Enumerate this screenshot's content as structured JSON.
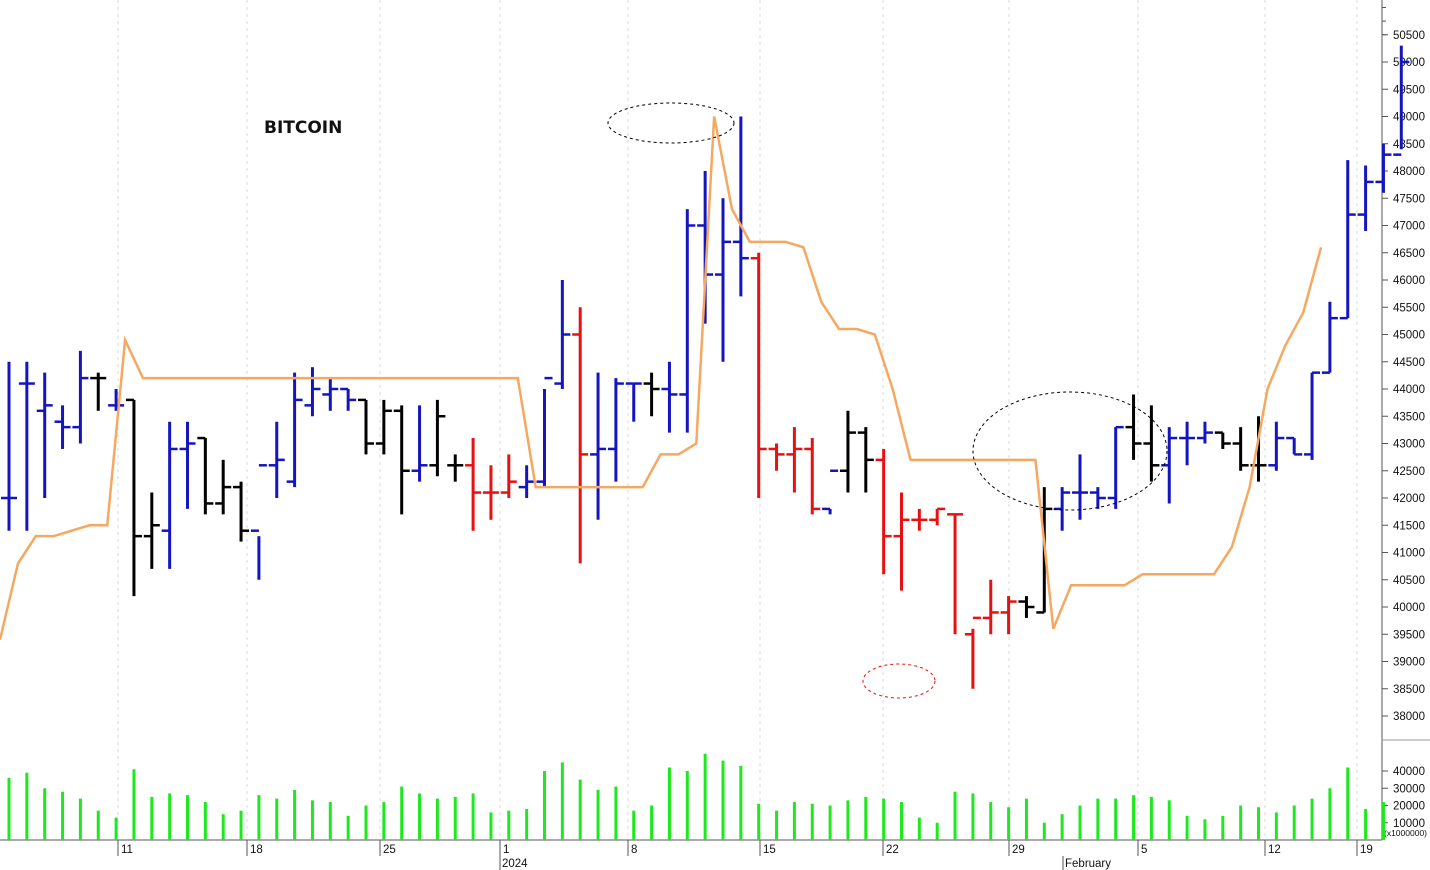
{
  "chart_data": {
    "type": "ohlc",
    "title": "BITCOIN",
    "price_axis": {
      "ylim": [
        37000,
        51000
      ],
      "ticks": [
        "38000",
        "38500",
        "39000",
        "39500",
        "40000",
        "40500",
        "41000",
        "41500",
        "42000",
        "42500",
        "43000",
        "43500",
        "44000",
        "44500",
        "45000",
        "45500",
        "46000",
        "46500",
        "47000",
        "47500",
        "48000",
        "48500",
        "49000",
        "49500",
        "50000",
        "50500"
      ]
    },
    "volume_axis": {
      "ylim": [
        0,
        50000
      ],
      "ticks": [
        "10000",
        "20000",
        "30000",
        "40000"
      ],
      "unit_label": "(x1000000)"
    },
    "x_ticks": [
      "11",
      "18",
      "25",
      "1",
      "8",
      "15",
      "22",
      "29",
      "5",
      "12",
      "19"
    ],
    "x_sublabels": [
      "2024",
      "February"
    ],
    "colors": {
      "up": "#1515c0",
      "neutral": "#000000",
      "down": "#e81010",
      "stop_line": "#f6a860",
      "volume": "#1ee81e",
      "annotation_dark": "#000000",
      "annotation_red": "#e81010"
    },
    "bars": [
      {
        "o": 42000,
        "h": 44500,
        "l": 41400,
        "c": 42000,
        "color": "up",
        "vol": 36000
      },
      {
        "o": 44100,
        "h": 44500,
        "l": 41400,
        "c": 44100,
        "color": "up",
        "vol": 39000
      },
      {
        "o": 43600,
        "h": 44300,
        "l": 42000,
        "c": 43700,
        "color": "up",
        "vol": 30000
      },
      {
        "o": 43400,
        "h": 43700,
        "l": 42900,
        "c": 43300,
        "color": "up",
        "vol": 28000
      },
      {
        "o": 43300,
        "h": 44700,
        "l": 43000,
        "c": 44200,
        "color": "up",
        "vol": 24000
      },
      {
        "o": 44200,
        "h": 44300,
        "l": 43600,
        "c": 44200,
        "color": "neutral",
        "vol": 17000
      },
      {
        "o": 43700,
        "h": 44000,
        "l": 43600,
        "c": 43700,
        "color": "up",
        "vol": 13000
      },
      {
        "o": 43800,
        "h": 43800,
        "l": 40200,
        "c": 41300,
        "color": "neutral",
        "vol": 41000
      },
      {
        "o": 41300,
        "h": 42100,
        "l": 40700,
        "c": 41500,
        "color": "neutral",
        "vol": 25000
      },
      {
        "o": 41400,
        "h": 43400,
        "l": 40700,
        "c": 42900,
        "color": "up",
        "vol": 27000
      },
      {
        "o": 42900,
        "h": 43400,
        "l": 41800,
        "c": 43000,
        "color": "up",
        "vol": 26000
      },
      {
        "o": 43100,
        "h": 43100,
        "l": 41700,
        "c": 41900,
        "color": "neutral",
        "vol": 22000
      },
      {
        "o": 41900,
        "h": 42700,
        "l": 41700,
        "c": 42200,
        "color": "neutral",
        "vol": 15000
      },
      {
        "o": 42200,
        "h": 42300,
        "l": 41200,
        "c": 41400,
        "color": "neutral",
        "vol": 17000
      },
      {
        "o": 41400,
        "h": 41300,
        "l": 40500,
        "c": 42600,
        "color": "up",
        "vol": 26000
      },
      {
        "o": 42600,
        "h": 43400,
        "l": 42000,
        "c": 42700,
        "color": "up",
        "vol": 24000
      },
      {
        "o": 42300,
        "h": 44300,
        "l": 42200,
        "c": 43800,
        "color": "up",
        "vol": 29000
      },
      {
        "o": 43700,
        "h": 44400,
        "l": 43500,
        "c": 44000,
        "color": "up",
        "vol": 23000
      },
      {
        "o": 43900,
        "h": 44200,
        "l": 43600,
        "c": 44000,
        "color": "up",
        "vol": 22000
      },
      {
        "o": 44000,
        "h": 44000,
        "l": 43600,
        "c": 43800,
        "color": "up",
        "vol": 14000
      },
      {
        "o": 43800,
        "h": 43800,
        "l": 42800,
        "c": 43000,
        "color": "neutral",
        "vol": 20000
      },
      {
        "o": 43000,
        "h": 43800,
        "l": 42800,
        "c": 43600,
        "color": "neutral",
        "vol": 22000
      },
      {
        "o": 43600,
        "h": 43700,
        "l": 41700,
        "c": 42500,
        "color": "neutral",
        "vol": 31000
      },
      {
        "o": 42500,
        "h": 43700,
        "l": 42300,
        "c": 42600,
        "color": "up",
        "vol": 27000
      },
      {
        "o": 42600,
        "h": 43800,
        "l": 42400,
        "c": 43500,
        "color": "neutral",
        "vol": 24000
      },
      {
        "o": 42600,
        "h": 42800,
        "l": 42300,
        "c": 42600,
        "color": "neutral",
        "vol": 25000
      },
      {
        "o": 42600,
        "h": 43100,
        "l": 41400,
        "c": 42100,
        "color": "down",
        "vol": 27000
      },
      {
        "o": 42100,
        "h": 42600,
        "l": 41600,
        "c": 42100,
        "color": "down",
        "vol": 16000
      },
      {
        "o": 42100,
        "h": 42800,
        "l": 42000,
        "c": 42300,
        "color": "down",
        "vol": 17000
      },
      {
        "o": 42200,
        "h": 42600,
        "l": 42000,
        "c": 42300,
        "color": "up",
        "vol": 18000
      },
      {
        "o": 42300,
        "h": 44000,
        "l": 42200,
        "c": 44200,
        "color": "up",
        "vol": 40000
      },
      {
        "o": 44100,
        "h": 46000,
        "l": 44000,
        "c": 45000,
        "color": "up",
        "vol": 45000
      },
      {
        "o": 45000,
        "h": 45500,
        "l": 40800,
        "c": 42800,
        "color": "down",
        "vol": 35000
      },
      {
        "o": 42800,
        "h": 44300,
        "l": 41600,
        "c": 42900,
        "color": "up",
        "vol": 29000
      },
      {
        "o": 42900,
        "h": 44200,
        "l": 42300,
        "c": 44100,
        "color": "up",
        "vol": 31000
      },
      {
        "o": 44100,
        "h": 44100,
        "l": 43400,
        "c": 44100,
        "color": "up",
        "vol": 17000
      },
      {
        "o": 44100,
        "h": 44300,
        "l": 43500,
        "c": 44000,
        "color": "neutral",
        "vol": 20000
      },
      {
        "o": 44000,
        "h": 44500,
        "l": 43200,
        "c": 43900,
        "color": "up",
        "vol": 42000
      },
      {
        "o": 43900,
        "h": 47300,
        "l": 43200,
        "c": 47000,
        "color": "up",
        "vol": 40000
      },
      {
        "o": 47000,
        "h": 48000,
        "l": 45200,
        "c": 46100,
        "color": "up",
        "vol": 50000
      },
      {
        "o": 46100,
        "h": 47500,
        "l": 44500,
        "c": 46700,
        "color": "up",
        "vol": 46000
      },
      {
        "o": 46700,
        "h": 49000,
        "l": 45700,
        "c": 46400,
        "color": "up",
        "vol": 43000
      },
      {
        "o": 46400,
        "h": 46500,
        "l": 42000,
        "c": 42900,
        "color": "down",
        "vol": 21000
      },
      {
        "o": 42900,
        "h": 43000,
        "l": 42500,
        "c": 42800,
        "color": "down",
        "vol": 17000
      },
      {
        "o": 42800,
        "h": 43300,
        "l": 42100,
        "c": 42900,
        "color": "down",
        "vol": 22000
      },
      {
        "o": 42900,
        "h": 43100,
        "l": 41700,
        "c": 41800,
        "color": "down",
        "vol": 21000
      },
      {
        "o": 41800,
        "h": 41800,
        "l": 41700,
        "c": 42500,
        "color": "up",
        "vol": 20000
      },
      {
        "o": 42500,
        "h": 43600,
        "l": 42100,
        "c": 43200,
        "color": "neutral",
        "vol": 23000
      },
      {
        "o": 43200,
        "h": 43300,
        "l": 42100,
        "c": 42700,
        "color": "neutral",
        "vol": 25000
      },
      {
        "o": 42700,
        "h": 42900,
        "l": 40600,
        "c": 41300,
        "color": "down",
        "vol": 24000
      },
      {
        "o": 41300,
        "h": 42100,
        "l": 40300,
        "c": 41600,
        "color": "down",
        "vol": 22000
      },
      {
        "o": 41600,
        "h": 41800,
        "l": 41400,
        "c": 41600,
        "color": "down",
        "vol": 13000
      },
      {
        "o": 41600,
        "h": 41800,
        "l": 41500,
        "c": 41800,
        "color": "down",
        "vol": 10000
      },
      {
        "o": 41700,
        "h": 41700,
        "l": 39500,
        "c": 41700,
        "color": "down",
        "vol": 28000
      },
      {
        "o": 39500,
        "h": 39600,
        "l": 38500,
        "c": 39800,
        "color": "down",
        "vol": 27000
      },
      {
        "o": 39800,
        "h": 40500,
        "l": 39500,
        "c": 39900,
        "color": "down",
        "vol": 22000
      },
      {
        "o": 39900,
        "h": 40200,
        "l": 39500,
        "c": 40100,
        "color": "down",
        "vol": 19000
      },
      {
        "o": 40100,
        "h": 40200,
        "l": 39800,
        "c": 40000,
        "color": "neutral",
        "vol": 24000
      },
      {
        "o": 39900,
        "h": 42200,
        "l": 39900,
        "c": 41800,
        "color": "neutral",
        "vol": 10000
      },
      {
        "o": 41800,
        "h": 42200,
        "l": 41400,
        "c": 42100,
        "color": "up",
        "vol": 15000
      },
      {
        "o": 42100,
        "h": 42800,
        "l": 41600,
        "c": 42100,
        "color": "up",
        "vol": 20000
      },
      {
        "o": 42100,
        "h": 42200,
        "l": 41800,
        "c": 42000,
        "color": "up",
        "vol": 24000
      },
      {
        "o": 42000,
        "h": 43300,
        "l": 41800,
        "c": 43300,
        "color": "up",
        "vol": 24000
      },
      {
        "o": 43300,
        "h": 43900,
        "l": 42700,
        "c": 43000,
        "color": "neutral",
        "vol": 26000
      },
      {
        "o": 43000,
        "h": 43700,
        "l": 42300,
        "c": 42600,
        "color": "neutral",
        "vol": 25000
      },
      {
        "o": 42600,
        "h": 43300,
        "l": 41900,
        "c": 43100,
        "color": "up",
        "vol": 23000
      },
      {
        "o": 43100,
        "h": 43400,
        "l": 42600,
        "c": 43100,
        "color": "up",
        "vol": 14000
      },
      {
        "o": 43100,
        "h": 43400,
        "l": 43000,
        "c": 43200,
        "color": "up",
        "vol": 12000
      },
      {
        "o": 43200,
        "h": 43200,
        "l": 42900,
        "c": 43000,
        "color": "neutral",
        "vol": 14000
      },
      {
        "o": 43000,
        "h": 43300,
        "l": 42500,
        "c": 42600,
        "color": "neutral",
        "vol": 20000
      },
      {
        "o": 42600,
        "h": 43500,
        "l": 42300,
        "c": 42600,
        "color": "neutral",
        "vol": 19000
      },
      {
        "o": 42600,
        "h": 43400,
        "l": 42500,
        "c": 43100,
        "color": "up",
        "vol": 16000
      },
      {
        "o": 43100,
        "h": 43100,
        "l": 42800,
        "c": 42800,
        "color": "up",
        "vol": 20000
      },
      {
        "o": 42800,
        "h": 44300,
        "l": 42700,
        "c": 44300,
        "color": "up",
        "vol": 24000
      },
      {
        "o": 44300,
        "h": 45600,
        "l": 44300,
        "c": 45300,
        "color": "up",
        "vol": 30000
      },
      {
        "o": 45300,
        "h": 48200,
        "l": 45300,
        "c": 47200,
        "color": "up",
        "vol": 42000
      },
      {
        "o": 47200,
        "h": 48100,
        "l": 46900,
        "c": 47800,
        "color": "up",
        "vol": 18000
      },
      {
        "o": 47800,
        "h": 48500,
        "l": 47600,
        "c": 48300,
        "color": "up",
        "vol": 22000
      },
      {
        "o": 48300,
        "h": 50300,
        "l": 48400,
        "c": 50000,
        "color": "up",
        "vol": 0
      }
    ],
    "stop_line": [
      39400,
      40800,
      41300,
      41300,
      41400,
      41500,
      41500,
      44900,
      44200,
      44200,
      44200,
      44200,
      44200,
      44200,
      44200,
      44200,
      44200,
      44200,
      44200,
      44200,
      44200,
      44200,
      44200,
      44200,
      44200,
      44200,
      44200,
      44200,
      44200,
      44200,
      42200,
      42200,
      42200,
      42200,
      42200,
      42200,
      42200,
      42800,
      42800,
      43000,
      49000,
      47300,
      46700,
      46700,
      46700,
      46600,
      45600,
      45100,
      45100,
      45000,
      44000,
      42700,
      42700,
      42700,
      42700,
      42700,
      42700,
      42700,
      42700,
      39600,
      40400,
      40400,
      40400,
      40400,
      40600,
      40600,
      40600,
      40600,
      40600,
      41100,
      42200,
      44000,
      44800,
      45400,
      46600
    ]
  }
}
